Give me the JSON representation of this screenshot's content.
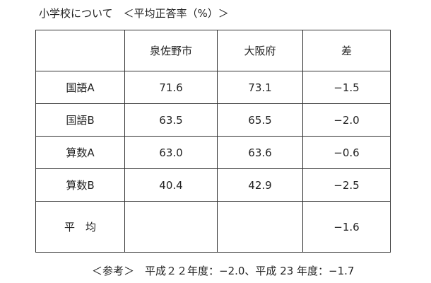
{
  "header": {
    "title": "小学校について　＜平均正答率（%）＞"
  },
  "table": {
    "columns": [
      "泉佐野市",
      "大阪府",
      "差"
    ],
    "rows": [
      {
        "label": "国語A",
        "cells": [
          "71.6",
          "73.1",
          "−1.5"
        ]
      },
      {
        "label": "国語B",
        "cells": [
          "63.5",
          "65.5",
          "−2.0"
        ]
      },
      {
        "label": "算数A",
        "cells": [
          "63.0",
          "63.6",
          "−0.6"
        ]
      },
      {
        "label": "算数B",
        "cells": [
          "40.4",
          "42.9",
          "−2.5"
        ]
      },
      {
        "label": "平　均",
        "cells": [
          null,
          null,
          "−1.6"
        ]
      }
    ]
  },
  "footer": {
    "note": "＜参考＞　平成２２年度：−2.0、平成 23 年度：−1.7"
  }
}
